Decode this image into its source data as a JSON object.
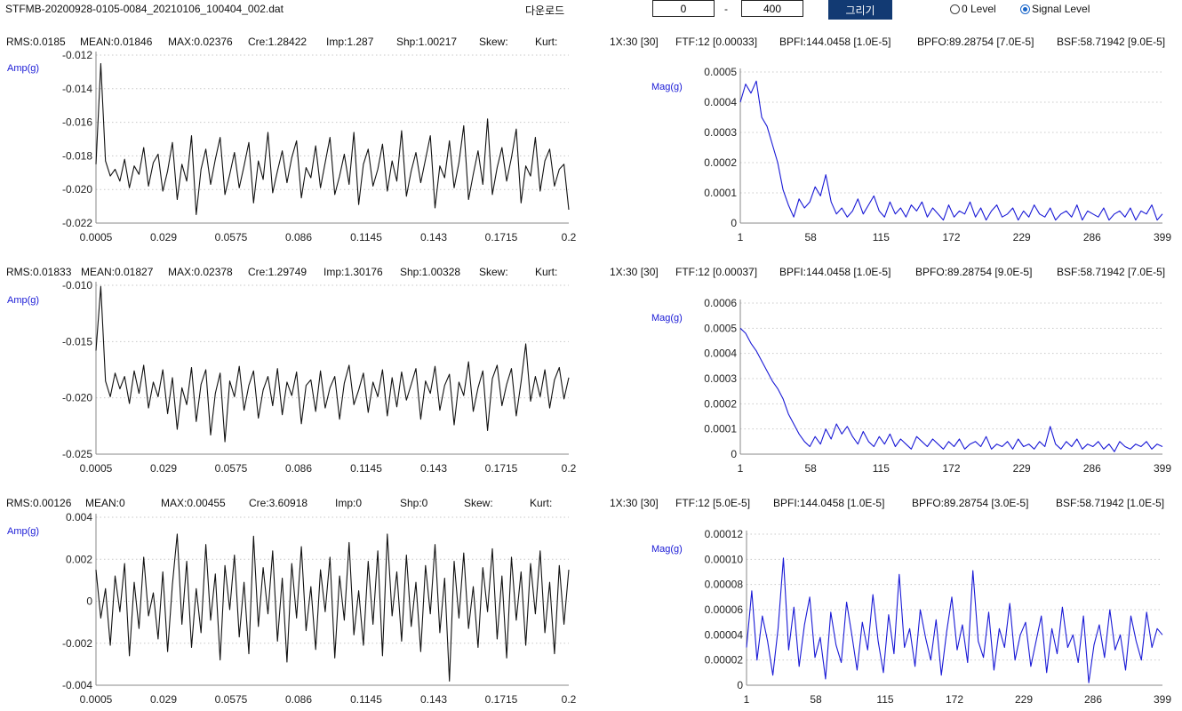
{
  "header": {
    "filename": "STFMB-20200928-0105-0084_20210106_100404_002.dat",
    "download_label": "다운로드",
    "range_start": "0",
    "range_separator": "-",
    "range_end": "400",
    "draw_label": "그리기",
    "radio_zero_label": "0 Level",
    "radio_signal_label": "Signal Level",
    "selected_level": "Signal Level"
  },
  "rows": [
    {
      "stats": [
        "RMS:0.0185",
        "MEAN:0.01846",
        "MAX:0.02376",
        "Cre:1.28422",
        "Imp:1.287",
        "Shp:1.00217",
        "Skew:",
        "Kurt:"
      ],
      "freq_stats": [
        "1X:30 [30]",
        "FTF:12 [0.00033]",
        "BPFI:144.0458 [1.0E-5]",
        "BPFO:89.28754 [7.0E-5]",
        "BSF:58.71942 [9.0E-5]"
      ]
    },
    {
      "stats": [
        "RMS:0.01833",
        "MEAN:0.01827",
        "MAX:0.02378",
        "Cre:1.29749",
        "Imp:1.30176",
        "Shp:1.00328",
        "Skew:",
        "Kurt:"
      ],
      "freq_stats": [
        "1X:30 [30]",
        "FTF:12 [0.00037]",
        "BPFI:144.0458 [1.0E-5]",
        "BPFO:89.28754 [9.0E-5]",
        "BSF:58.71942 [7.0E-5]"
      ]
    },
    {
      "stats": [
        "RMS:0.00126",
        "MEAN:0",
        "MAX:0.00455",
        "Cre:3.60918",
        "Imp:0",
        "Shp:0",
        "Skew:",
        "Kurt:"
      ],
      "freq_stats": [
        "1X:30 [30]",
        "FTF:12 [5.0E-5]",
        "BPFI:144.0458 [1.0E-5]",
        "BPFO:89.28754 [3.0E-5]",
        "BSF:58.71942 [1.0E-5]"
      ]
    }
  ],
  "chart_data": [
    {
      "id": "wave1",
      "type": "line",
      "ylabel": "Amp(g)",
      "x_tick_labels": [
        "0.0005",
        "0.029",
        "0.0575",
        "0.086",
        "0.1145",
        "0.143",
        "0.1715",
        "0.2"
      ],
      "xlim": [
        0.0005,
        0.2
      ],
      "y_ticks": [
        -0.012,
        -0.014,
        -0.016,
        -0.018,
        -0.02,
        -0.022
      ],
      "y_tick_labels": [
        "-0.012",
        "-0.014",
        "-0.016",
        "-0.018",
        "-0.020",
        "-0.022"
      ],
      "ylim": [
        -0.022,
        -0.012
      ],
      "grid": "horizontal dotted",
      "color": "#111111",
      "series": [
        {
          "x_start": 0.0005,
          "x_end": 0.2,
          "values": [
            -0.0185,
            -0.0125,
            -0.0183,
            -0.0192,
            -0.0188,
            -0.0195,
            -0.0182,
            -0.0199,
            -0.0186,
            -0.0191,
            -0.0175,
            -0.0198,
            -0.0184,
            -0.0179,
            -0.0201,
            -0.0189,
            -0.0172,
            -0.0206,
            -0.0185,
            -0.0195,
            -0.0168,
            -0.0215,
            -0.0188,
            -0.0176,
            -0.0197,
            -0.0182,
            -0.0169,
            -0.0203,
            -0.0191,
            -0.0178,
            -0.0199,
            -0.0186,
            -0.0172,
            -0.0208,
            -0.0183,
            -0.0194,
            -0.0166,
            -0.0202,
            -0.0189,
            -0.0177,
            -0.0196,
            -0.0181,
            -0.0171,
            -0.0205,
            -0.0187,
            -0.0193,
            -0.0174,
            -0.0199,
            -0.0184,
            -0.0169,
            -0.0203,
            -0.0192,
            -0.0179,
            -0.0197,
            -0.0166,
            -0.0209,
            -0.0185,
            -0.0176,
            -0.0198,
            -0.0188,
            -0.0173,
            -0.0201,
            -0.0183,
            -0.0195,
            -0.0165,
            -0.0204,
            -0.0189,
            -0.0178,
            -0.0196,
            -0.0182,
            -0.0168,
            -0.0211,
            -0.0186,
            -0.0193,
            -0.0171,
            -0.0199,
            -0.0184,
            -0.0162,
            -0.0206,
            -0.0191,
            -0.0177,
            -0.0197,
            -0.0158,
            -0.0203,
            -0.0187,
            -0.0175,
            -0.0195,
            -0.0181,
            -0.0164,
            -0.0208,
            -0.0186,
            -0.0192,
            -0.0169,
            -0.0201,
            -0.0183,
            -0.0176,
            -0.0198,
            -0.0188,
            -0.0185,
            -0.0212
          ]
        }
      ]
    },
    {
      "id": "spec1",
      "type": "line",
      "ylabel": "Mag(g)",
      "x_tick_labels": [
        "1",
        "58",
        "115",
        "172",
        "229",
        "286",
        "399"
      ],
      "xlim": [
        1,
        399
      ],
      "y_ticks": [
        0.0005,
        0.0004,
        0.0003,
        0.0002,
        0.0001,
        0
      ],
      "y_tick_labels": [
        "0.0005",
        "0.0004",
        "0.0003",
        "0.0002",
        "0.0001",
        "0"
      ],
      "ylim": [
        0,
        0.0005
      ],
      "grid": "horizontal dotted",
      "color": "#1a1ad6",
      "series": [
        {
          "x_start": 1,
          "x_end": 399,
          "values": [
            0.0004,
            0.00046,
            0.00043,
            0.00047,
            0.00035,
            0.00032,
            0.00026,
            0.0002,
            0.00011,
            6e-05,
            2e-05,
            8e-05,
            5e-05,
            7e-05,
            0.00012,
            9e-05,
            0.00016,
            7e-05,
            3e-05,
            5e-05,
            2e-05,
            4e-05,
            8e-05,
            3e-05,
            6e-05,
            9e-05,
            4e-05,
            2e-05,
            7e-05,
            3e-05,
            5e-05,
            2e-05,
            6e-05,
            4e-05,
            7e-05,
            2e-05,
            5e-05,
            3e-05,
            1e-05,
            6e-05,
            2e-05,
            4e-05,
            3e-05,
            7e-05,
            2e-05,
            5e-05,
            1e-05,
            4e-05,
            6e-05,
            2e-05,
            3e-05,
            5e-05,
            1e-05,
            4e-05,
            2e-05,
            6e-05,
            3e-05,
            2e-05,
            5e-05,
            1e-05,
            3e-05,
            4e-05,
            2e-05,
            6e-05,
            1e-05,
            4e-05,
            3e-05,
            2e-05,
            5e-05,
            1e-05,
            3e-05,
            4e-05,
            2e-05,
            5e-05,
            1e-05,
            4e-05,
            3e-05,
            6e-05,
            1e-05,
            3e-05
          ]
        }
      ]
    },
    {
      "id": "wave2",
      "type": "line",
      "ylabel": "Amp(g)",
      "x_tick_labels": [
        "0.0005",
        "0.029",
        "0.0575",
        "0.086",
        "0.1145",
        "0.143",
        "0.1715",
        "0.2"
      ],
      "xlim": [
        0.0005,
        0.2
      ],
      "y_ticks": [
        -0.01,
        -0.015,
        -0.02,
        -0.025
      ],
      "y_tick_labels": [
        "-0.010",
        "-0.015",
        "-0.020",
        "-0.025"
      ],
      "ylim": [
        -0.025,
        -0.01
      ],
      "grid": "horizontal dotted",
      "color": "#111111",
      "series": [
        {
          "x_start": 0.0005,
          "x_end": 0.2,
          "values": [
            -0.0158,
            -0.0101,
            -0.0185,
            -0.0199,
            -0.0178,
            -0.0192,
            -0.0181,
            -0.0205,
            -0.0176,
            -0.0196,
            -0.0171,
            -0.0209,
            -0.0186,
            -0.0199,
            -0.0175,
            -0.0214,
            -0.0182,
            -0.0228,
            -0.0191,
            -0.0206,
            -0.0173,
            -0.0221,
            -0.0188,
            -0.0175,
            -0.0233,
            -0.0196,
            -0.0178,
            -0.0239,
            -0.0185,
            -0.0199,
            -0.0172,
            -0.0211,
            -0.0189,
            -0.0176,
            -0.0218,
            -0.0193,
            -0.0181,
            -0.0207,
            -0.0174,
            -0.0215,
            -0.0186,
            -0.0198,
            -0.0177,
            -0.0223,
            -0.0189,
            -0.0184,
            -0.0212,
            -0.0176,
            -0.0209,
            -0.0191,
            -0.0181,
            -0.0219,
            -0.0187,
            -0.0171,
            -0.0206,
            -0.0193,
            -0.0178,
            -0.0213,
            -0.0186,
            -0.0199,
            -0.0175,
            -0.0216,
            -0.0182,
            -0.0208,
            -0.0177,
            -0.0202,
            -0.0188,
            -0.0174,
            -0.0219,
            -0.0185,
            -0.0196,
            -0.0172,
            -0.0211,
            -0.0189,
            -0.0179,
            -0.0224,
            -0.0186,
            -0.0198,
            -0.0168,
            -0.0212,
            -0.0191,
            -0.0176,
            -0.0229,
            -0.0183,
            -0.0171,
            -0.0207,
            -0.0188,
            -0.0174,
            -0.0216,
            -0.0186,
            -0.0152,
            -0.0203,
            -0.0181,
            -0.0199,
            -0.0175,
            -0.0209,
            -0.0184,
            -0.0173,
            -0.0201,
            -0.0182
          ]
        }
      ]
    },
    {
      "id": "spec2",
      "type": "line",
      "ylabel": "Mag(g)",
      "x_tick_labels": [
        "1",
        "58",
        "115",
        "172",
        "229",
        "286",
        "399"
      ],
      "xlim": [
        1,
        399
      ],
      "y_ticks": [
        0.0006,
        0.0005,
        0.0004,
        0.0003,
        0.0002,
        0.0001,
        0
      ],
      "y_tick_labels": [
        "0.0006",
        "0.0005",
        "0.0004",
        "0.0003",
        "0.0002",
        "0.0001",
        "0"
      ],
      "ylim": [
        0,
        0.0006
      ],
      "grid": "horizontal dotted",
      "color": "#1a1ad6",
      "series": [
        {
          "x_start": 1,
          "x_end": 399,
          "values": [
            0.0005,
            0.00048,
            0.00044,
            0.00041,
            0.00037,
            0.00033,
            0.00029,
            0.00026,
            0.00022,
            0.00016,
            0.00012,
            8e-05,
            5e-05,
            3e-05,
            7e-05,
            4e-05,
            0.0001,
            6e-05,
            0.00012,
            8e-05,
            0.00011,
            7e-05,
            4e-05,
            9e-05,
            5e-05,
            3e-05,
            7e-05,
            4e-05,
            8e-05,
            3e-05,
            6e-05,
            4e-05,
            2e-05,
            7e-05,
            5e-05,
            3e-05,
            6e-05,
            4e-05,
            2e-05,
            5e-05,
            3e-05,
            6e-05,
            2e-05,
            4e-05,
            5e-05,
            3e-05,
            7e-05,
            2e-05,
            4e-05,
            3e-05,
            5e-05,
            2e-05,
            6e-05,
            3e-05,
            4e-05,
            2e-05,
            5e-05,
            3e-05,
            0.00011,
            4e-05,
            2e-05,
            5e-05,
            3e-05,
            6e-05,
            2e-05,
            4e-05,
            3e-05,
            5e-05,
            2e-05,
            4e-05,
            1e-05,
            5e-05,
            3e-05,
            2e-05,
            4e-05,
            3e-05,
            5e-05,
            2e-05,
            4e-05,
            3e-05
          ]
        }
      ]
    },
    {
      "id": "wave3",
      "type": "line",
      "ylabel": "Amp(g)",
      "x_tick_labels": [
        "0.0005",
        "0.029",
        "0.0575",
        "0.086",
        "0.1145",
        "0.143",
        "0.1715",
        "0.2"
      ],
      "xlim": [
        0.0005,
        0.2
      ],
      "y_ticks": [
        0.004,
        0.002,
        0,
        -0.002,
        -0.004
      ],
      "y_tick_labels": [
        "0.004",
        "0.002",
        "0",
        "-0.002",
        "-0.004"
      ],
      "ylim": [
        -0.004,
        0.004
      ],
      "grid": "horizontal dotted",
      "color": "#111111",
      "series": [
        {
          "x_start": 0.0005,
          "x_end": 0.2,
          "values": [
            0.0015,
            -0.0008,
            0.0006,
            -0.0021,
            0.0012,
            -0.0005,
            0.0018,
            -0.0026,
            0.0009,
            -0.0013,
            0.0021,
            -0.0007,
            0.0004,
            -0.0018,
            0.0014,
            -0.0024,
            0.0008,
            0.0032,
            -0.0011,
            0.0019,
            -0.0022,
            0.0006,
            -0.0015,
            0.0027,
            -0.0009,
            0.0013,
            -0.0028,
            0.0017,
            -0.0004,
            0.0022,
            -0.0017,
            0.0009,
            -0.0025,
            0.0031,
            -0.0012,
            0.0016,
            -0.0006,
            0.0024,
            -0.0019,
            0.0011,
            -0.0029,
            0.0018,
            -0.0008,
            0.0026,
            -0.0014,
            0.0007,
            -0.0023,
            0.0015,
            -0.0005,
            0.0021,
            -0.0027,
            0.0012,
            -0.0009,
            0.0028,
            -0.0016,
            0.0005,
            -0.0021,
            0.0019,
            -0.0011,
            0.0024,
            -0.0026,
            0.0032,
            -0.0007,
            0.0014,
            -0.0019,
            0.0022,
            -0.0012,
            0.0009,
            -0.0024,
            0.0017,
            -0.0006,
            0.0027,
            -0.0015,
            0.0011,
            -0.0038,
            0.0019,
            -0.0008,
            0.0023,
            -0.0013,
            0.0007,
            -0.0022,
            0.0016,
            -0.0005,
            0.0025,
            -0.0018,
            0.0012,
            -0.0027,
            0.0021,
            -0.0009,
            0.0014,
            -0.0021,
            0.0018,
            -0.0006,
            0.0024,
            -0.0015,
            0.0009,
            -0.0025,
            0.0017,
            -0.0011,
            0.0015
          ]
        }
      ]
    },
    {
      "id": "spec3",
      "type": "line",
      "ylabel": "Mag(g)",
      "x_tick_labels": [
        "1",
        "58",
        "115",
        "172",
        "229",
        "286",
        "399"
      ],
      "xlim": [
        1,
        399
      ],
      "y_ticks": [
        0.00012,
        0.0001,
        8e-05,
        6e-05,
        4e-05,
        2e-05,
        0
      ],
      "y_tick_labels": [
        "0.00012",
        "0.00010",
        "0.00008",
        "0.00006",
        "0.00004",
        "0.00002",
        "0"
      ],
      "ylim": [
        0,
        0.00012
      ],
      "grid": "horizontal dotted",
      "color": "#1a1ad6",
      "series": [
        {
          "x_start": 1,
          "x_end": 399,
          "values": [
            3e-05,
            7.5e-05,
            2e-05,
            5.5e-05,
            3.5e-05,
            8e-06,
            4.5e-05,
            0.000101,
            2.8e-05,
            6.2e-05,
            1.5e-05,
            4.8e-05,
            7e-05,
            2.2e-05,
            3.8e-05,
            5e-06,
            5.8e-05,
            3.2e-05,
            1.8e-05,
            6.6e-05,
            4e-05,
            1.2e-05,
            5e-05,
            2.8e-05,
            7.2e-05,
            3.5e-05,
            1e-05,
            5.6e-05,
            2.5e-05,
            8.8e-05,
            3e-05,
            4.5e-05,
            1.5e-05,
            6e-05,
            3.8e-05,
            2e-05,
            5.2e-05,
            8e-06,
            4.2e-05,
            7e-05,
            2.8e-05,
            4.8e-05,
            1.8e-05,
            9.1e-05,
            3.5e-05,
            2.2e-05,
            5.8e-05,
            1.2e-05,
            4.5e-05,
            3e-05,
            6.5e-05,
            2e-05,
            4e-05,
            5e-05,
            1.5e-05,
            3.5e-05,
            5.5e-05,
            1e-05,
            4.5e-05,
            2.5e-05,
            6.2e-05,
            3e-05,
            4e-05,
            1.8e-05,
            5.5e-05,
            2e-06,
            3.2e-05,
            4.8e-05,
            2.2e-05,
            6e-05,
            2.8e-05,
            4e-05,
            1.2e-05,
            5.5e-05,
            3.5e-05,
            2e-05,
            5.8e-05,
            3e-05,
            4.5e-05,
            4e-05
          ]
        }
      ]
    }
  ]
}
